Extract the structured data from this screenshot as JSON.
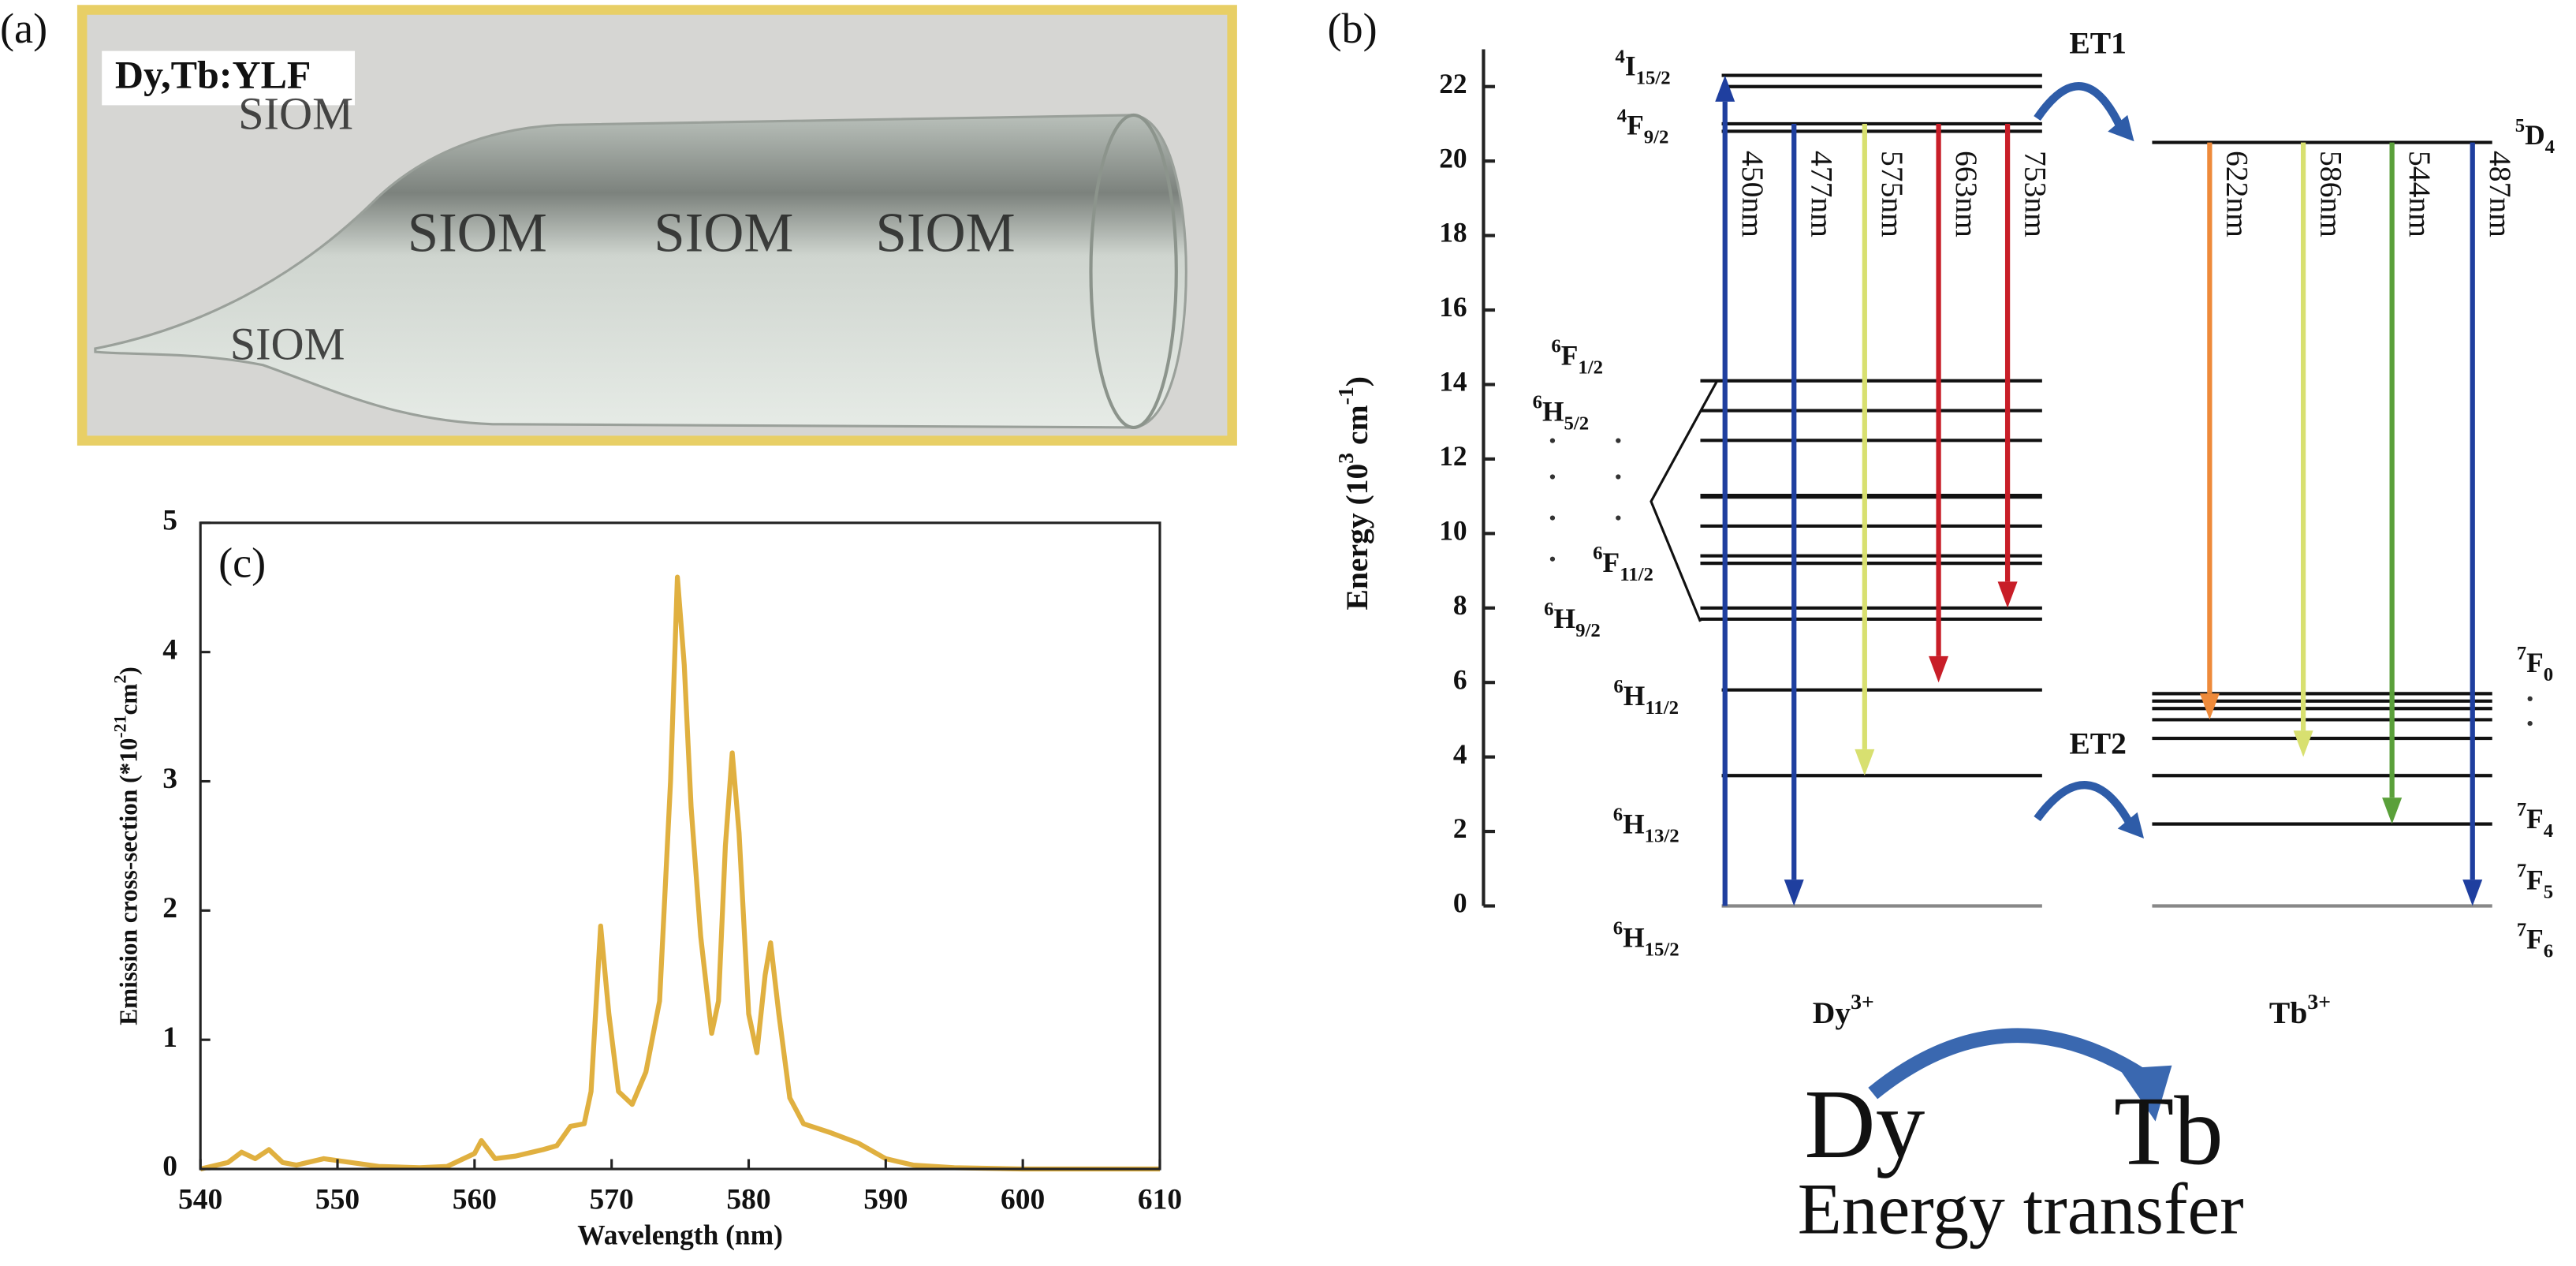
{
  "panel_labels": [
    "(a)",
    "(b)",
    "(c)"
  ],
  "photo": {
    "sample_label": "Dy,Tb:YLF",
    "watermark": "SIOM"
  },
  "chart_data": {
    "type": "line",
    "x_label": "Wavelength (nm)",
    "y_label": [
      {
        "text": "Emission cross-section (*10"
      },
      {
        "sup": "-21"
      },
      {
        "text": "cm"
      },
      {
        "sup": "2"
      },
      {
        "text": ")"
      }
    ],
    "xlim": [
      540,
      610
    ],
    "xticks": [
      540,
      550,
      560,
      570,
      580,
      590,
      600,
      610
    ],
    "ylim": [
      0,
      5
    ],
    "yticks": [
      0,
      1,
      2,
      3,
      4,
      5
    ],
    "color": "#e0b040",
    "x": [
      540,
      542,
      543,
      544,
      545,
      546,
      547,
      549,
      551,
      553,
      556,
      558,
      560,
      560.5,
      561.5,
      563,
      565,
      566,
      567,
      568,
      568.5,
      569.2,
      569.8,
      570.5,
      571.5,
      572.5,
      573.5,
      574.3,
      574.8,
      575.3,
      575.8,
      576.5,
      577.3,
      577.8,
      578.3,
      578.8,
      579.3,
      580,
      580.6,
      581.2,
      581.6,
      582.2,
      583,
      584,
      586,
      588,
      590,
      592,
      595,
      600,
      610
    ],
    "values": [
      0,
      0.05,
      0.13,
      0.08,
      0.15,
      0.05,
      0.03,
      0.08,
      0.05,
      0.02,
      0.01,
      0.02,
      0.12,
      0.22,
      0.08,
      0.1,
      0.15,
      0.18,
      0.33,
      0.35,
      0.6,
      1.88,
      1.2,
      0.6,
      0.5,
      0.75,
      1.3,
      3.0,
      4.58,
      3.9,
      2.8,
      1.8,
      1.05,
      1.3,
      2.5,
      3.22,
      2.6,
      1.2,
      0.9,
      1.5,
      1.75,
      1.2,
      0.55,
      0.35,
      0.28,
      0.2,
      0.08,
      0.03,
      0.01,
      0,
      0
    ]
  },
  "energy_diagram": {
    "y_label": [
      {
        "text": "Energy (10"
      },
      {
        "sup": "3"
      },
      {
        "text": " cm"
      },
      {
        "sup": "-1"
      },
      {
        "text": ")"
      }
    ],
    "ylim": [
      0,
      23
    ],
    "yticks": [
      0,
      2,
      4,
      6,
      8,
      10,
      12,
      14,
      16,
      18,
      20,
      22
    ],
    "dy_levels": [
      22.3,
      22.0,
      21.0,
      20.8,
      14.1,
      13.3,
      12.5,
      11.0,
      10.2,
      9.4,
      9.2,
      8.0,
      7.7,
      5.8,
      3.5,
      0
    ],
    "tb_levels": [
      20.5,
      5.7,
      5.5,
      5.3,
      5.0,
      4.5,
      3.5,
      2.2,
      0
    ],
    "dy_level_labels": [
      [
        {
          "sup": "4"
        },
        {
          "text": "I"
        },
        {
          "sub": "15/2"
        }
      ],
      [
        {
          "sup": "4"
        },
        {
          "text": "F"
        },
        {
          "sub": "9/2"
        }
      ],
      [
        {
          "sup": "6"
        },
        {
          "text": "F"
        },
        {
          "sub": "1/2"
        }
      ],
      [
        {
          "sup": "6"
        },
        {
          "text": "H"
        },
        {
          "sub": "5/2"
        }
      ],
      [
        {
          "sup": "6"
        },
        {
          "text": "F"
        },
        {
          "sub": "11/2"
        }
      ],
      [
        {
          "sup": "6"
        },
        {
          "text": "H"
        },
        {
          "sub": "9/2"
        }
      ],
      [
        {
          "sup": "6"
        },
        {
          "text": "H"
        },
        {
          "sub": "11/2"
        }
      ],
      [
        {
          "sup": "6"
        },
        {
          "text": "H"
        },
        {
          "sub": "13/2"
        }
      ],
      [
        {
          "sup": "6"
        },
        {
          "text": "H"
        },
        {
          "sub": "15/2"
        }
      ]
    ],
    "tb_level_labels": [
      [
        {
          "sup": "5"
        },
        {
          "text": "D"
        },
        {
          "sub": "4"
        }
      ],
      [
        {
          "sup": "7"
        },
        {
          "text": "F"
        },
        {
          "sub": "0"
        }
      ],
      [
        {
          "sup": "7"
        },
        {
          "text": "F"
        },
        {
          "sub": "4"
        }
      ],
      [
        {
          "sup": "7"
        },
        {
          "text": "F"
        },
        {
          "sub": "5"
        }
      ],
      [
        {
          "sup": "7"
        },
        {
          "text": "F"
        },
        {
          "sub": "6"
        }
      ]
    ],
    "transitions": [
      {
        "label": "450nm",
        "from": 0,
        "to": 22.3,
        "color": "#1f3f9f"
      },
      {
        "label": "477nm",
        "from": 21.0,
        "to": 0,
        "color": "#1f3f9f"
      },
      {
        "label": "575nm",
        "from": 21.0,
        "to": 3.5,
        "color": "#d8e070"
      },
      {
        "label": "663nm",
        "from": 21.0,
        "to": 6.0,
        "color": "#c81e28"
      },
      {
        "label": "753nm",
        "from": 21.0,
        "to": 8.0,
        "color": "#c81e28"
      },
      {
        "label": "622nm",
        "from": 20.5,
        "to": 5.0,
        "color": "#ee8a3a"
      },
      {
        "label": "586nm",
        "from": 20.5,
        "to": 4.0,
        "color": "#d8e070"
      },
      {
        "label": "544nm",
        "from": 20.5,
        "to": 2.2,
        "color": "#5aa03a"
      },
      {
        "label": "487nm",
        "from": 20.5,
        "to": 0,
        "color": "#1f3f9f"
      }
    ],
    "ions": [
      [
        {
          "text": "Dy"
        },
        {
          "sup": "3+"
        }
      ],
      [
        {
          "text": "Tb"
        },
        {
          "sup": "3+"
        }
      ]
    ],
    "transfers": [
      "ET1",
      "ET2"
    ],
    "scheme": {
      "donor": "Dy",
      "acceptor": "Tb",
      "caption": "Energy transfer"
    }
  }
}
